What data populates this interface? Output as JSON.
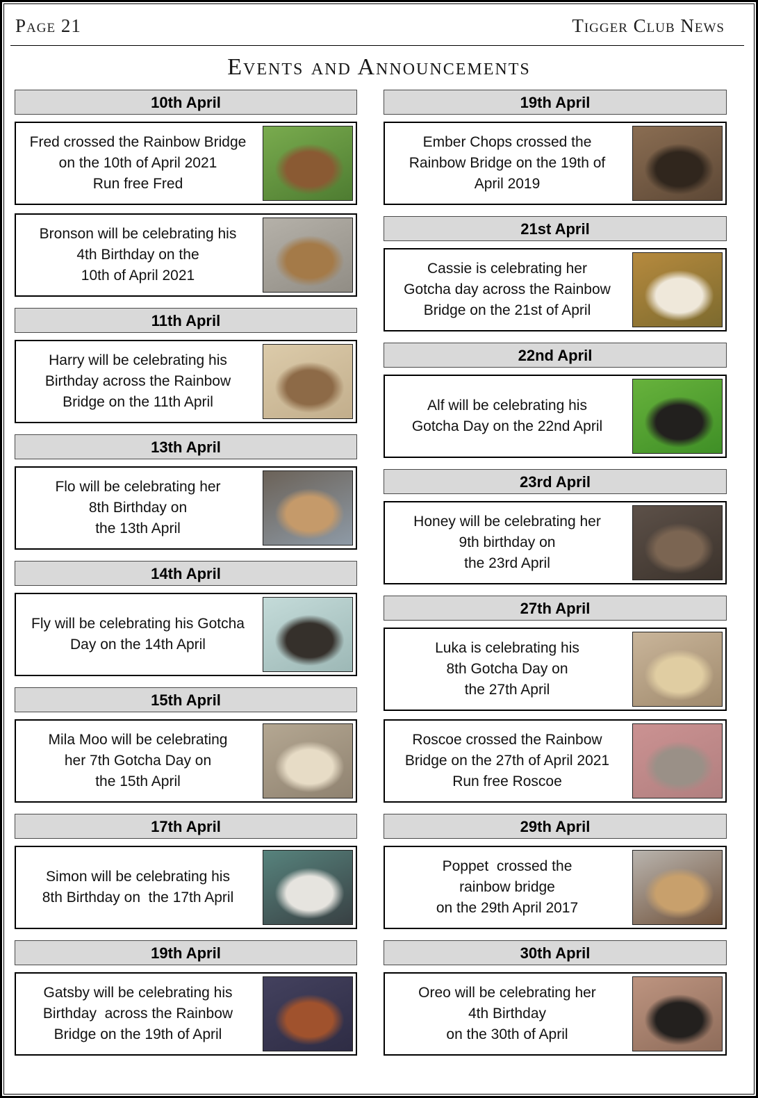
{
  "theme": {
    "header_bg": "#d9d9d9",
    "card_border": "#000000",
    "page_border": "#000000",
    "text": "#111111",
    "masthead_text": "#1f1f1f"
  },
  "masthead": {
    "page_label": "Page 21",
    "brand": "Tigger Club News"
  },
  "title": "Events and Announcements",
  "columns": [
    {
      "side": "left",
      "sections": [
        {
          "date": "10th April",
          "cards": [
            {
              "lines": [
                "Fred crossed the Rainbow Bridge",
                "on the 10th of April 2021",
                "Run free Fred"
              ],
              "photo": {
                "desc": "brown and white spaniel sitting on grass",
                "colors": [
                  "#79ab4e",
                  "#4e7c31",
                  "#8a5a33"
                ]
              }
            },
            {
              "lines": [
                "Bronson will be celebrating his",
                "4th Birthday on the",
                "10th of April 2021"
              ],
              "photo": {
                "desc": "tan and black shepherd standing on pavement",
                "colors": [
                  "#b5b1a9",
                  "#918d85",
                  "#a47a48"
                ]
              }
            }
          ]
        },
        {
          "date": "11th April",
          "cards": [
            {
              "lines": [
                "Harry will be celebrating his",
                "Birthday across the Rainbow",
                "Bridge on the 11th April"
              ],
              "photo": {
                "desc": "brindle greyhound standing on beach sand",
                "colors": [
                  "#dccbaa",
                  "#c2ae8c",
                  "#8d6a47"
                ]
              }
            }
          ]
        },
        {
          "date": "13th April",
          "cards": [
            {
              "lines": [
                "Flo will be celebrating her",
                "8th Birthday on",
                "the 13th April"
              ],
              "photo": {
                "desc": "tan dog resting on sofa beside a keyboard",
                "colors": [
                  "#6b6258",
                  "#8e9aa6",
                  "#c59a6a"
                ]
              }
            }
          ]
        },
        {
          "date": "14th April",
          "cards": [
            {
              "lines": [
                "Fly will be celebrating his Gotcha",
                "Day on the 14th April"
              ],
              "photo": {
                "desc": "two hounds lying on sofa with pale blue cushions",
                "colors": [
                  "#c4dbd9",
                  "#9db8b6",
                  "#35302b"
                ]
              }
            }
          ]
        },
        {
          "date": "15th April",
          "cards": [
            {
              "lines": [
                "Mila Moo will be celebrating",
                "her 7th Gotcha Day on",
                "the 15th April"
              ],
              "photo": {
                "desc": "cream lurcher looking at camera by stone wall",
                "colors": [
                  "#b4a792",
                  "#8f8270",
                  "#e7dcc6"
                ]
              }
            }
          ]
        },
        {
          "date": "17th April",
          "cards": [
            {
              "lines": [
                "Simon will be celebrating his",
                "8th Birthday on  the 17th April"
              ],
              "photo": {
                "desc": "black and white dog face close-up",
                "colors": [
                  "#57837d",
                  "#384043",
                  "#e6e4df"
                ]
              }
            }
          ]
        },
        {
          "date": "19th April",
          "cards": [
            {
              "lines": [
                "Gatsby will be celebrating his",
                "Birthday  across the Rainbow",
                "Bridge on the 19th of April"
              ],
              "photo": {
                "desc": "curly red-brown dog on dark floral blanket",
                "colors": [
                  "#43415e",
                  "#2e2c44",
                  "#a0522d"
                ]
              }
            }
          ]
        }
      ]
    },
    {
      "side": "right",
      "sections": [
        {
          "date": "19th April",
          "cards": [
            {
              "lines": [
                "Ember Chops crossed the",
                "Rainbow Bridge on the 19th of",
                "April 2019"
              ],
              "photo": {
                "desc": "grey-muzzled dark dog resting on brown blanket",
                "colors": [
                  "#8a6d52",
                  "#5d4836",
                  "#30261d"
                ]
              }
            }
          ]
        },
        {
          "date": "21st April",
          "cards": [
            {
              "lines": [
                "Cassie is celebrating her",
                "Gotcha day across the Rainbow",
                "Bridge on the 21st of April"
              ],
              "photo": {
                "desc": "white and sable collie among autumn leaves",
                "colors": [
                  "#b68a3e",
                  "#7c6a2e",
                  "#efe8da"
                ]
              }
            }
          ]
        },
        {
          "date": "22nd April",
          "cards": [
            {
              "lines": [
                "Alf will be celebrating his",
                "Gotcha Day on the 22nd April"
              ],
              "photo": {
                "desc": "black saluki sitting on bright green grass",
                "colors": [
                  "#67b23c",
                  "#3f8f26",
                  "#22201e"
                ]
              }
            }
          ]
        },
        {
          "date": "23rd April",
          "cards": [
            {
              "lines": [
                "Honey will be celebrating her",
                "9th birthday on",
                "the 23rd April"
              ],
              "photo": {
                "desc": "dark brindle greyhound with pink collar",
                "colors": [
                  "#5c5048",
                  "#3c332c",
                  "#7b6552"
                ]
              }
            }
          ]
        },
        {
          "date": "27th April",
          "cards": [
            {
              "lines": [
                "Luka is celebrating his",
                "8th Gotcha Day on",
                "the 27th April"
              ],
              "photo": {
                "desc": "cream long-nosed dog indoors",
                "colors": [
                  "#c9b59a",
                  "#a08a6d",
                  "#e0cda2"
                ]
              }
            },
            {
              "lines": [
                "Roscoe crossed the Rainbow",
                "Bridge on the 27th of April 2021",
                "Run free Roscoe"
              ],
              "photo": {
                "desc": "grey poodle beside pink wall",
                "colors": [
                  "#cb9292",
                  "#b17f7f",
                  "#9a9087"
                ]
              }
            }
          ]
        },
        {
          "date": "29th April",
          "cards": [
            {
              "lines": [
                "Poppet  crossed the",
                "rainbow bridge",
                "on the 29th April 2017"
              ],
              "photo": {
                "desc": "fawn greyhound head resting on brown blanket",
                "colors": [
                  "#b9b4ae",
                  "#6f513a",
                  "#c8a06c"
                ]
              }
            }
          ]
        },
        {
          "date": "30th April",
          "cards": [
            {
              "lines": [
                "Oreo will be celebrating her",
                "4th Birthday",
                "on the 30th of April"
              ],
              "photo": {
                "desc": "woman in glasses with black and white dog",
                "colors": [
                  "#bd9480",
                  "#8e6c5a",
                  "#23201e"
                ]
              }
            }
          ]
        }
      ]
    }
  ]
}
